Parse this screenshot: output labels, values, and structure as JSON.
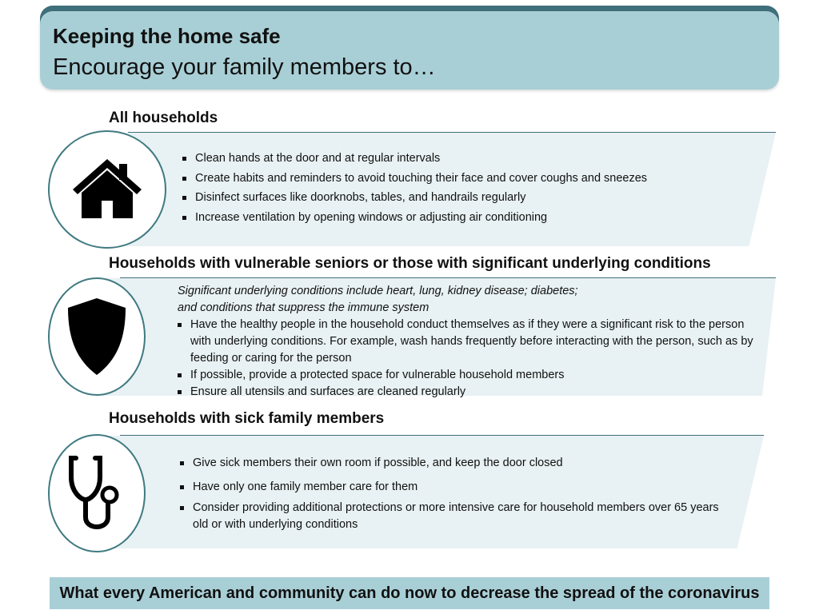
{
  "header": {
    "title": "Keeping the home safe",
    "subtitle": "Encourage your family members to…"
  },
  "sections": [
    {
      "heading": "All households",
      "icon": "house-icon",
      "bullets": [
        "Clean hands at the door and at regular intervals",
        "Create habits and reminders to avoid touching their face and cover coughs and sneezes",
        "Disinfect surfaces like doorknobs, tables, and handrails regularly",
        "Increase ventilation by opening windows or adjusting air conditioning"
      ]
    },
    {
      "heading": "Households with vulnerable seniors or those with significant underlying conditions",
      "icon": "shield-icon",
      "note_line1": "Significant underlying conditions include heart, lung, kidney disease; diabetes;",
      "note_line2": "and conditions that suppress the immune system",
      "bullets": [
        "Have the healthy people in the household conduct themselves as if they were a significant risk to the person with underlying conditions. For example, wash hands frequently before interacting with the person, such as by feeding or caring for the person",
        "If possible, provide a protected space for vulnerable household members",
        "Ensure all utensils and surfaces are cleaned regularly"
      ]
    },
    {
      "heading": "Households with sick family members",
      "icon": "stethoscope-icon",
      "bullets": [
        "Give sick members their own room if possible, and keep the door closed",
        "Have only one family member care for them",
        "Consider providing additional protections or more intensive care for household members over 65 years old or with underlying conditions"
      ]
    }
  ],
  "footer": "What every American and community can do now to decrease the spread of the coronavirus",
  "colors": {
    "header": "#a9cfd6",
    "header_dark": "#3f6f7a",
    "panel": "#e8f1f3"
  }
}
